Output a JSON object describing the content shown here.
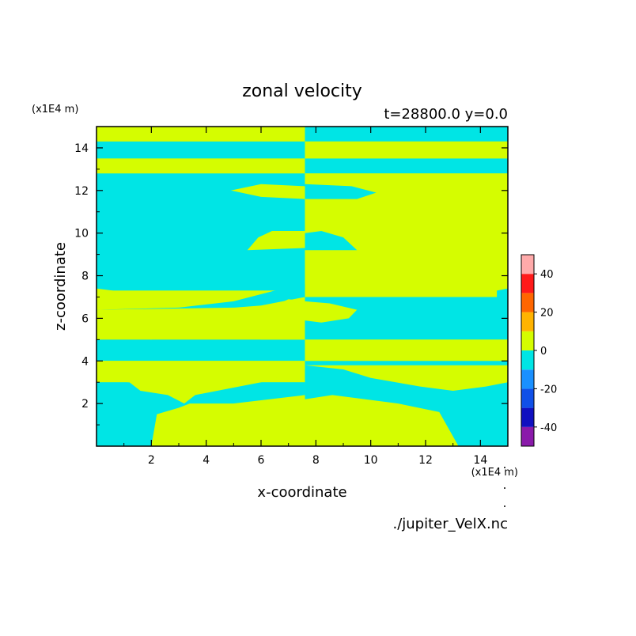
{
  "chart_data": {
    "type": "heatmap",
    "title": "zonal velocity",
    "subtitle": "t=28800.0 y=0.0",
    "xlabel": "x-coordinate",
    "ylabel": "z-coordinate",
    "x_unit": "(x1E4 m)",
    "y_unit": "(x1E4 m)",
    "source": "./jupiter_VelX.nc",
    "xlim": [
      0,
      15
    ],
    "ylim": [
      0,
      15
    ],
    "xticks": [
      "2",
      "4",
      "6",
      "8",
      "10",
      "12",
      "14"
    ],
    "yticks": [
      "2",
      "4",
      "6",
      "8",
      "10",
      "12",
      "14"
    ],
    "colorbar": {
      "levels": [
        -50,
        -40,
        -30,
        -20,
        -10,
        0,
        10,
        20,
        30,
        40,
        50
      ],
      "colors": [
        "#8a1aaa",
        "#1010c0",
        "#1050e8",
        "#1a90ff",
        "#00e5e5",
        "#d5fd00",
        "#ffb300",
        "#ff6600",
        "#ff1a1a",
        "#ffaaaa"
      ],
      "tick_values": [
        -40,
        -20,
        0,
        20,
        40
      ],
      "tick_labels": [
        "-40",
        "-20",
        "0",
        "20",
        "40"
      ]
    },
    "field_colors": {
      "positive": "#d5fd00",
      "negative": "#00e5e5"
    },
    "bands_left": [
      {
        "z": [
          14.3,
          15.0
        ],
        "sign": "positive"
      },
      {
        "z": [
          13.5,
          14.3
        ],
        "sign": "negative"
      },
      {
        "z": [
          12.8,
          13.5
        ],
        "sign": "positive"
      },
      {
        "z": [
          7.3,
          12.8
        ],
        "sign": "negative"
      },
      {
        "z": [
          6.4,
          7.3
        ],
        "sign": "positive"
      },
      {
        "z": [
          5.0,
          6.4
        ],
        "sign": "positive"
      },
      {
        "z": [
          4.0,
          5.0
        ],
        "sign": "negative"
      },
      {
        "z": [
          3.0,
          4.0
        ],
        "sign": "positive"
      },
      {
        "z": [
          0.0,
          3.0
        ],
        "sign": "negative"
      }
    ],
    "bands_right": [
      {
        "z": [
          14.3,
          15.0
        ],
        "sign": "negative"
      },
      {
        "z": [
          13.5,
          14.3
        ],
        "sign": "positive"
      },
      {
        "z": [
          12.8,
          13.5
        ],
        "sign": "negative"
      },
      {
        "z": [
          7.0,
          12.8
        ],
        "sign": "positive"
      },
      {
        "z": [
          5.0,
          7.0
        ],
        "sign": "negative"
      },
      {
        "z": [
          4.0,
          5.0
        ],
        "sign": "positive"
      },
      {
        "z": [
          0.0,
          4.0
        ],
        "sign": "negative"
      }
    ]
  }
}
